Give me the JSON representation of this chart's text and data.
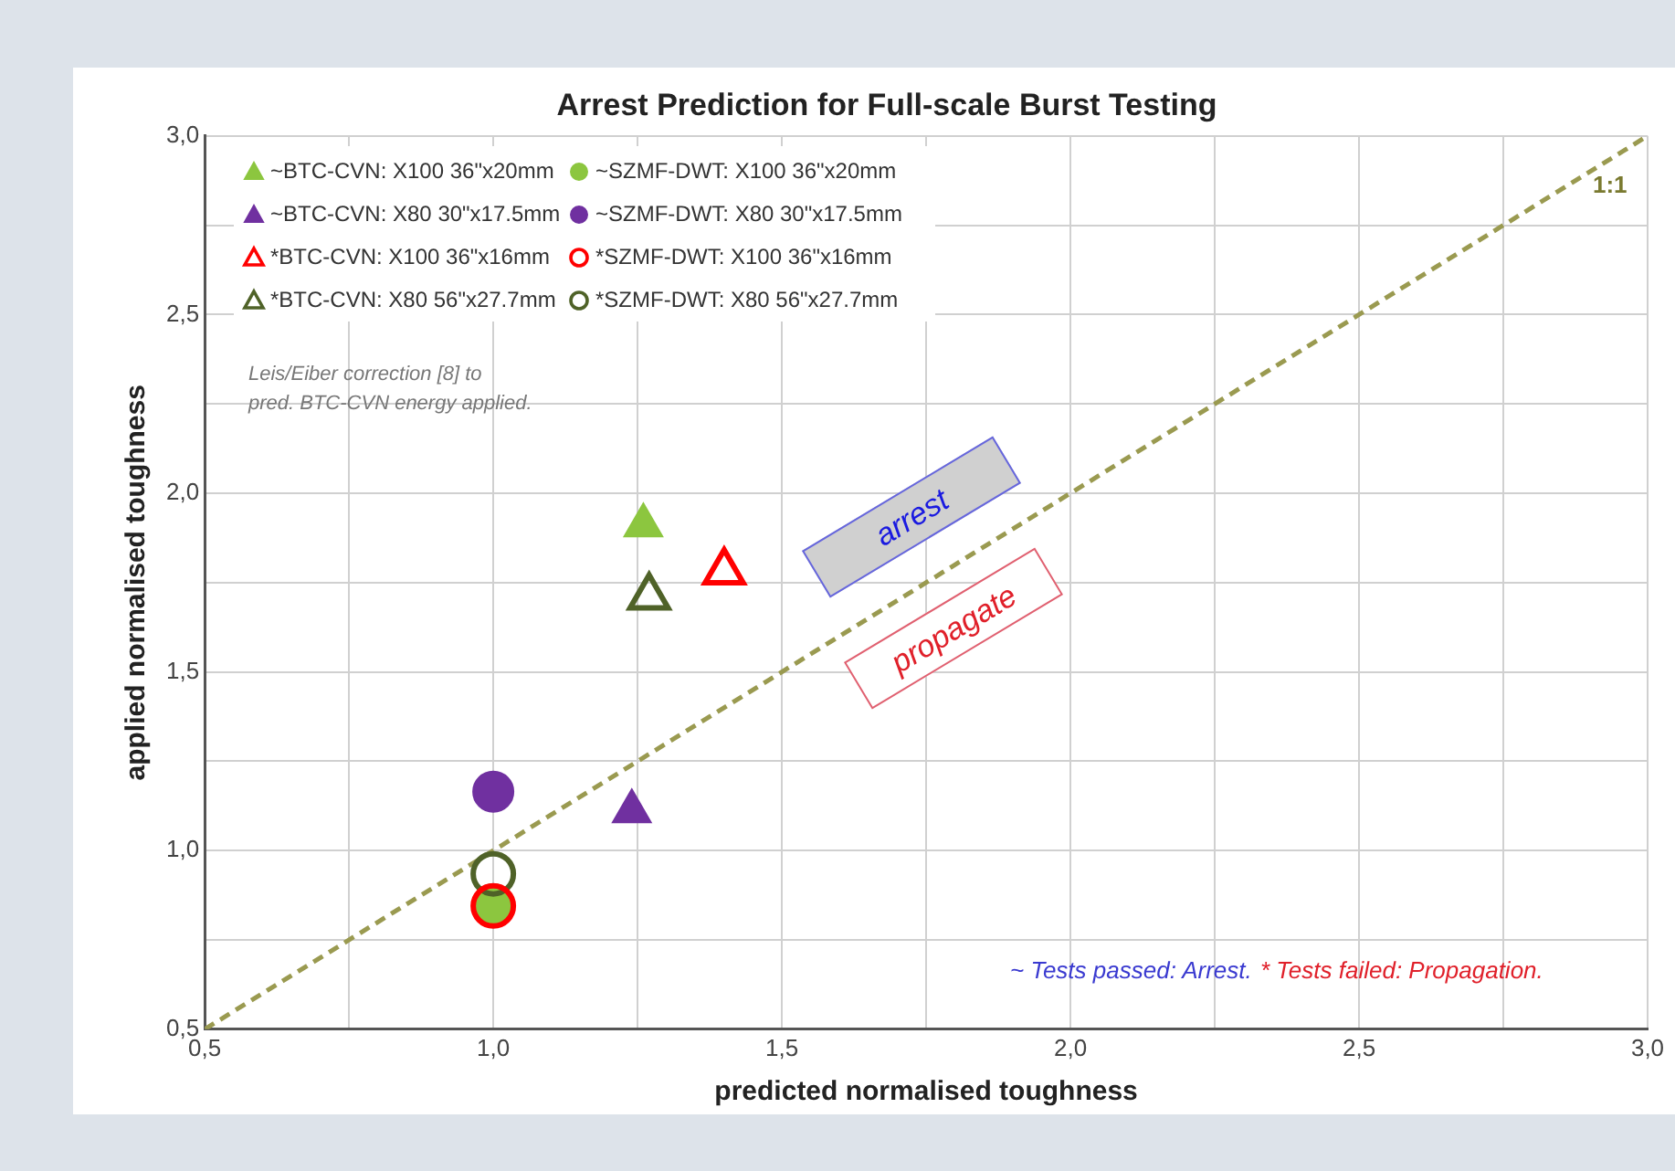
{
  "chart_data": {
    "type": "scatter",
    "title": "Arrest Prediction for Full-scale Burst Testing",
    "xlabel": "predicted normalised toughness",
    "ylabel": "applied normalised toughness",
    "xlim": [
      0.5,
      3.0
    ],
    "ylim": [
      0.5,
      3.0
    ],
    "xticks": [
      {
        "value": 0.5,
        "label": "0,5"
      },
      {
        "value": 0.75,
        "label": null
      },
      {
        "value": 1.0,
        "label": "1,0"
      },
      {
        "value": 1.25,
        "label": null
      },
      {
        "value": 1.5,
        "label": "1,5"
      },
      {
        "value": 1.75,
        "label": null
      },
      {
        "value": 2.0,
        "label": "2,0"
      },
      {
        "value": 2.25,
        "label": null
      },
      {
        "value": 2.5,
        "label": "2,5"
      },
      {
        "value": 2.75,
        "label": null
      },
      {
        "value": 3.0,
        "label": "3,0"
      }
    ],
    "yticks": [
      {
        "value": 0.5,
        "label": "0,5"
      },
      {
        "value": 0.75,
        "label": null
      },
      {
        "value": 1.0,
        "label": "1,0"
      },
      {
        "value": 1.25,
        "label": null
      },
      {
        "value": 1.5,
        "label": "1,5"
      },
      {
        "value": 1.75,
        "label": null
      },
      {
        "value": 2.0,
        "label": "2,0"
      },
      {
        "value": 2.25,
        "label": null
      },
      {
        "value": 2.5,
        "label": "2,5"
      },
      {
        "value": 2.75,
        "label": null
      },
      {
        "value": 3.0,
        "label": "3,0"
      }
    ],
    "grid": true,
    "legend": "top left",
    "series": [
      {
        "name": "~BTC-CVN: X100 36\"x20mm",
        "color": "#8cc63f",
        "marker": "triangle",
        "x": [
          1.26
        ],
        "values": [
          1.91
        ]
      },
      {
        "name": "~BTC-CVN: X80 30\"x17.5mm",
        "color": "#7030a0",
        "marker": "triangle",
        "x": [
          1.24
        ],
        "values": [
          1.11
        ]
      },
      {
        "name": "*BTC-CVN: X100 36\"x16mm",
        "color": "#ff0000",
        "marker": "triangle",
        "x": [
          1.4
        ],
        "values": [
          1.78
        ]
      },
      {
        "name": "*BTC-CVN: X80 56\"x27.7mm",
        "color": "#4f6228",
        "marker": "triangle",
        "x": [
          1.27
        ],
        "values": [
          1.71
        ]
      },
      {
        "name": "~SZMF-DWT: X100 36\"x20mm",
        "color": "#8cc63f",
        "marker": "circle",
        "x": [
          1.0
        ],
        "values": [
          0.85
        ]
      },
      {
        "name": "~SZMF-DWT: X80 30\"x17.5mm",
        "color": "#7030a0",
        "marker": "circle",
        "x": [
          1.0
        ],
        "values": [
          1.165
        ]
      },
      {
        "name": "*SZMF-DWT: X100 36\"x16mm",
        "color": "#ff0000",
        "marker": "circle",
        "x": [
          1.0
        ],
        "values": [
          0.845
        ]
      },
      {
        "name": "*SZMF-DWT: X80 56\"x27.7mm",
        "color": "#4f6228",
        "marker": "circle",
        "x": [
          1.0
        ],
        "values": [
          0.935
        ]
      },
      {
        "type": "line",
        "color": "#9a9a50",
        "line_style": "dashed",
        "marker": "none",
        "x": [
          0.5,
          3.0
        ],
        "values": [
          0.5,
          3.0
        ]
      }
    ],
    "annotations": [
      "1:1",
      "Leis/Eiber correction [8] to\npred. BTC-CVN energy applied.",
      "arrest",
      "propagate",
      "~ Tests passed: Arrest.",
      "* Tests failed: Propagation."
    ]
  }
}
